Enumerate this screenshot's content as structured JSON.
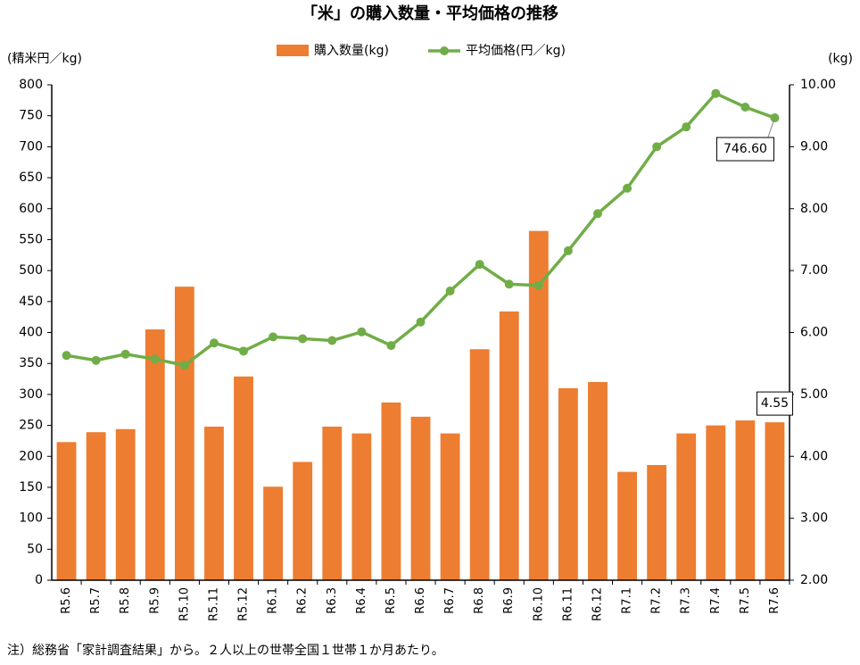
{
  "chart_data": {
    "type": "bar-line",
    "title": "「米」の購入数量・平均価格の推移",
    "y_label": "(精米円／kg)",
    "y2_label": "(kg)",
    "note": "注）総務省「家計調査結果」から。２人以上の世帯全国１世帯１か月あたり。",
    "categories": [
      "R5.6",
      "R5.7",
      "R5.8",
      "R5.9",
      "R5.10",
      "R5.11",
      "R5.12",
      "R6.1",
      "R6.2",
      "R6.3",
      "R6.4",
      "R6.5",
      "R6.6",
      "R6.7",
      "R6.8",
      "R6.9",
      "R6.10",
      "R6.11",
      "R6.12",
      "R7.1",
      "R7.2",
      "R7.3",
      "R7.4",
      "R7.5",
      "R7.6"
    ],
    "series": [
      {
        "name": "購入数量(kg)",
        "type": "bar",
        "axis": "y2",
        "color": "#ed7d31",
        "values": [
          4.23,
          4.39,
          4.44,
          6.05,
          6.74,
          4.48,
          5.29,
          3.51,
          3.91,
          4.48,
          4.37,
          4.87,
          4.64,
          4.37,
          5.73,
          6.34,
          7.64,
          5.1,
          5.2,
          3.75,
          3.86,
          4.37,
          4.5,
          4.58,
          4.55
        ]
      },
      {
        "name": "平均価格(円／kg)",
        "type": "line",
        "axis": "y",
        "color": "#70ad47",
        "values": [
          363,
          355,
          365,
          357,
          347,
          383,
          370,
          393,
          390,
          387,
          401,
          379,
          417,
          467,
          510,
          478,
          476,
          532,
          592,
          633,
          700,
          732,
          786,
          764,
          746.6
        ],
        "value_labels": [
          null,
          null,
          null,
          null,
          null,
          null,
          null,
          null,
          null,
          null,
          null,
          null,
          null,
          null,
          null,
          null,
          null,
          null,
          null,
          null,
          null,
          null,
          null,
          null,
          "746.60"
        ]
      }
    ],
    "ylim": [
      0,
      800
    ],
    "yticks": [
      0,
      50,
      100,
      150,
      200,
      250,
      300,
      350,
      400,
      450,
      500,
      550,
      600,
      650,
      700,
      750,
      800
    ],
    "y2lim": [
      2,
      10
    ],
    "y2ticks": [
      {
        "value": 2,
        "label": "2.00"
      },
      {
        "value": 3,
        "label": "3.00"
      },
      {
        "value": 4,
        "label": "4.00"
      },
      {
        "value": 5,
        "label": "5.00"
      },
      {
        "value": 6,
        "label": "6.00"
      },
      {
        "value": 7,
        "label": "7.00"
      },
      {
        "value": 8,
        "label": "8.00"
      },
      {
        "value": 9,
        "label": "9.00"
      },
      {
        "value": 10,
        "label": "10.00"
      }
    ]
  }
}
